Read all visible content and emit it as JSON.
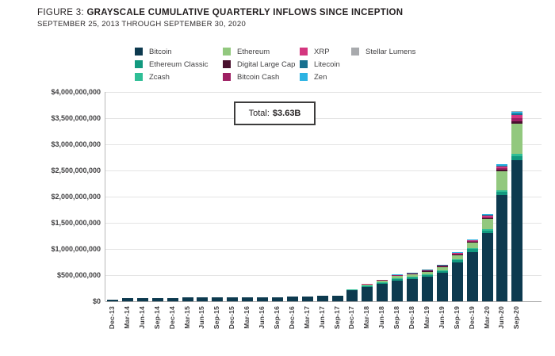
{
  "figure": {
    "label": "FIGURE 3:",
    "title": "GRAYSCALE CUMULATIVE QUARTERLY INFLOWS SINCE INCEPTION",
    "subtitle": "SEPTEMBER 25, 2013 THROUGH SEPTEMBER 30, 2020"
  },
  "annotation": {
    "prefix": "Total:",
    "value": "$3.63B"
  },
  "chart_data": {
    "type": "bar",
    "stacked": true,
    "unit": "USD millions",
    "title": "Grayscale Cumulative Quarterly Inflows Since Inception",
    "xlabel": "",
    "ylabel": "",
    "grid": true,
    "ylim": [
      0,
      4000
    ],
    "y_step": 500,
    "y_tick_labels": [
      "$0",
      "$500,000,000",
      "$1,000,000,000",
      "$1,500,000,000",
      "$2,000,000,000",
      "$2,500,000,000",
      "$3,000,000,000",
      "$3,500,000,000",
      "$4,000,000,000"
    ],
    "categories": [
      "Dec-13",
      "Mar-14",
      "Jun-14",
      "Sep-14",
      "Dec-14",
      "Mar-15",
      "Jun-15",
      "Sep-15",
      "Dec-15",
      "Mar-16",
      "Jun-16",
      "Sep-16",
      "Dec-16",
      "Mar-17",
      "Jun-17",
      "Sep-17",
      "Dec-17",
      "Mar-18",
      "Jun-18",
      "Sep-18",
      "Dec-18",
      "Mar-19",
      "Jun-19",
      "Sep-19",
      "Dec-19",
      "Mar-20",
      "Jun-20",
      "Sep-20"
    ],
    "series": [
      {
        "name": "Bitcoin",
        "color": "#0d3a4f",
        "values": [
          35,
          62,
          64,
          66,
          68,
          70,
          71,
          72,
          73,
          75,
          78,
          81,
          85,
          92,
          99,
          104,
          205,
          271,
          326,
          401,
          428,
          471,
          540,
          740,
          945,
          1300,
          2030,
          2700
        ]
      },
      {
        "name": "Ethereum Classic",
        "color": "#12997f",
        "values": [
          0,
          0,
          0,
          0,
          0,
          0,
          0,
          0,
          0,
          0,
          0,
          0,
          0,
          5,
          6,
          7,
          12,
          18,
          22,
          26,
          28,
          32,
          38,
          42,
          48,
          55,
          62,
          80
        ]
      },
      {
        "name": "Zcash",
        "color": "#2fbe96",
        "values": [
          0,
          0,
          0,
          0,
          0,
          0,
          0,
          0,
          0,
          0,
          0,
          0,
          0,
          0,
          0,
          0,
          5,
          8,
          10,
          12,
          13,
          14,
          16,
          18,
          22,
          28,
          35,
          45
        ]
      },
      {
        "name": "Ethereum",
        "color": "#92c87e",
        "values": [
          0,
          0,
          0,
          0,
          0,
          0,
          0,
          0,
          0,
          0,
          0,
          0,
          0,
          0,
          0,
          0,
          8,
          20,
          35,
          40,
          42,
          48,
          60,
          80,
          101,
          187,
          365,
          575
        ]
      },
      {
        "name": "Digital Large Cap",
        "color": "#49102e",
        "values": [
          0,
          0,
          0,
          0,
          0,
          0,
          0,
          0,
          0,
          0,
          0,
          0,
          0,
          0,
          0,
          0,
          0,
          3,
          5,
          7,
          8,
          9,
          10,
          12,
          15,
          20,
          25,
          40
        ]
      },
      {
        "name": "Bitcoin Cash",
        "color": "#9e2063",
        "values": [
          0,
          0,
          0,
          0,
          0,
          0,
          0,
          0,
          0,
          0,
          0,
          0,
          0,
          0,
          0,
          0,
          0,
          4,
          6,
          8,
          9,
          10,
          11,
          13,
          16,
          22,
          28,
          60
        ]
      },
      {
        "name": "XRP",
        "color": "#d4367f",
        "values": [
          0,
          0,
          0,
          0,
          0,
          0,
          0,
          0,
          0,
          0,
          0,
          0,
          0,
          0,
          0,
          0,
          0,
          4,
          6,
          8,
          9,
          10,
          12,
          14,
          18,
          25,
          30,
          60
        ]
      },
      {
        "name": "Litecoin",
        "color": "#17708f",
        "values": [
          0,
          0,
          0,
          0,
          0,
          0,
          0,
          0,
          0,
          0,
          0,
          0,
          0,
          0,
          0,
          0,
          0,
          2,
          4,
          5,
          5,
          6,
          7,
          8,
          10,
          14,
          18,
          30
        ]
      },
      {
        "name": "Zen",
        "color": "#2cb3e3",
        "values": [
          0,
          0,
          0,
          0,
          0,
          0,
          0,
          0,
          0,
          0,
          0,
          0,
          0,
          0,
          0,
          0,
          0,
          0,
          1,
          3,
          4,
          5,
          6,
          8,
          10,
          15,
          25,
          38
        ]
      },
      {
        "name": "Stellar Lumens",
        "color": "#a8aaad",
        "values": [
          0,
          0,
          0,
          0,
          0,
          0,
          0,
          0,
          0,
          0,
          0,
          0,
          0,
          0,
          0,
          0,
          0,
          0,
          0,
          0,
          0,
          1,
          1,
          1,
          1,
          1,
          2,
          5
        ]
      }
    ],
    "legend": {
      "position": "top",
      "columns": [
        [
          "Bitcoin",
          "Ethereum Classic",
          "Zcash"
        ],
        [
          "Ethereum",
          "Digital Large Cap",
          "Bitcoin Cash"
        ],
        [
          "XRP",
          "Litecoin",
          "Zen"
        ],
        [
          "Stellar Lumens"
        ]
      ]
    },
    "total_label": "Total: $3.63B"
  }
}
